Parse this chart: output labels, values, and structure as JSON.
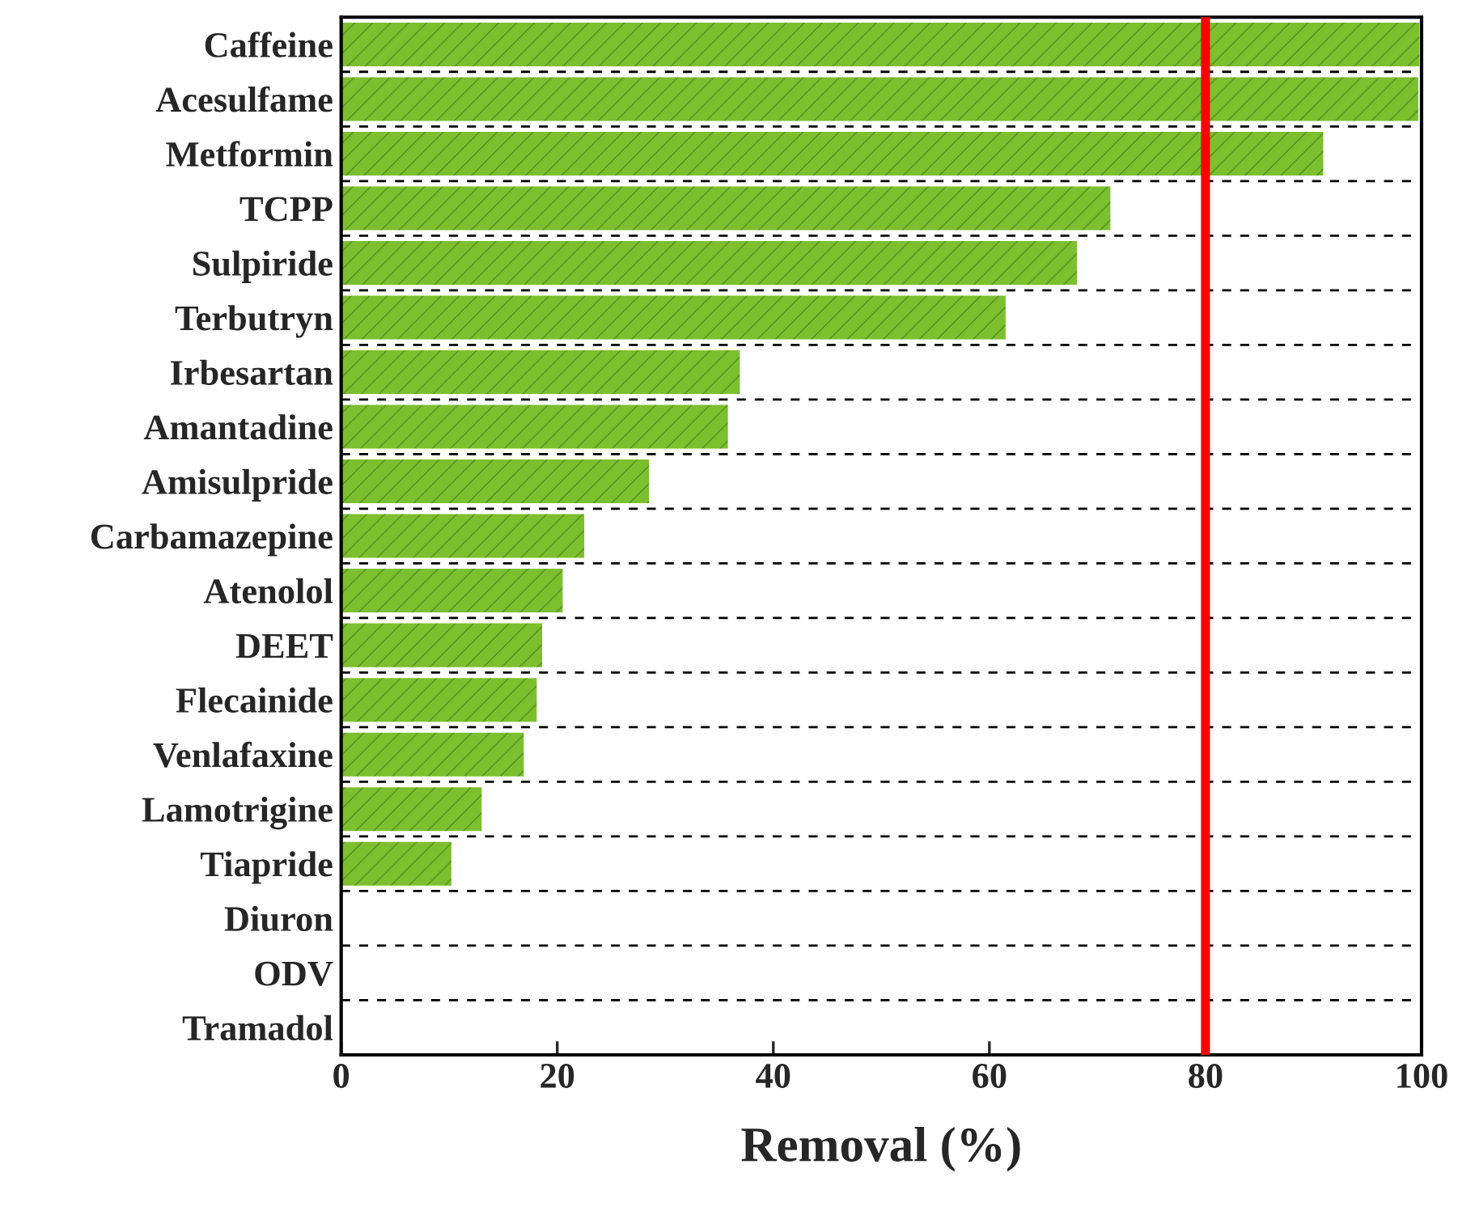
{
  "chart_data": {
    "type": "bar",
    "orientation": "horizontal",
    "xlabel": "Removal (%)",
    "categories": [
      "Caffeine",
      "Acesulfame",
      "Metformin",
      "TCPP",
      "Sulpiride",
      "Terbutryn",
      "Irbesartan",
      "Amantadine",
      "Amisulpride",
      "Carbamazepine",
      "Atenolol",
      "DEET",
      "Flecainide",
      "Venlafaxine",
      "Lamotrigine",
      "Tiapride",
      "Diuron",
      "ODV",
      "Tramadol"
    ],
    "values": [
      99.8,
      99.7,
      90.9,
      71.2,
      68.1,
      61.5,
      36.9,
      35.8,
      28.5,
      22.5,
      20.5,
      18.6,
      18.1,
      16.9,
      13.0,
      10.2,
      0,
      0,
      0
    ],
    "color": "#7cbf2f",
    "xlim": [
      0,
      100
    ],
    "xticks": [
      0,
      20,
      40,
      60,
      80,
      100
    ],
    "ref_lines": [
      {
        "axis": "x",
        "value": 80,
        "color": "#ff0000",
        "line_style": "solid"
      }
    ],
    "grid": "y",
    "legend": false
  }
}
